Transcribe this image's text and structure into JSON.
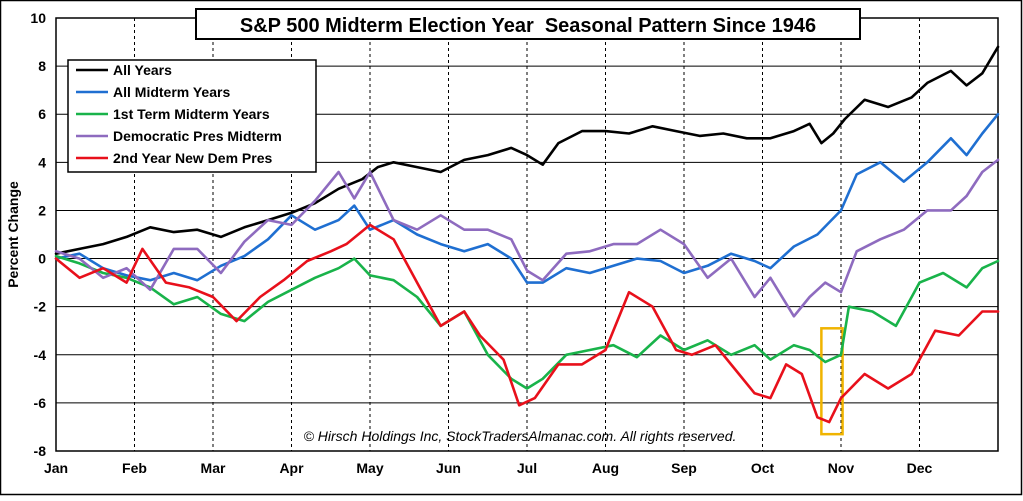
{
  "chart_data": {
    "type": "line",
    "title": "S&P 500 Midterm Election Year  Seasonal Pattern Since 1946",
    "xlabel": "",
    "ylabel": "Percent Change",
    "ylim": [
      -8,
      10
    ],
    "y_ticks": [
      -8,
      -6,
      -4,
      -2,
      0,
      2,
      4,
      6,
      8,
      10
    ],
    "x_range": [
      0,
      12
    ],
    "months": [
      "Jan",
      "Feb",
      "Mar",
      "Apr",
      "May",
      "Jun",
      "Jul",
      "Aug",
      "Sep",
      "Oct",
      "Nov",
      "Dec"
    ],
    "grid": "dashed vertical at month starts, solid horizontal at y ticks",
    "legend_position": "top-left",
    "copyright": "© Hirsch Holdings Inc, StockTradersAlmanac.com. All rights reserved.",
    "highlight_box": {
      "x": [
        9.75,
        10.02
      ],
      "y": [
        -7.3,
        -2.9
      ],
      "color": "#f0b400"
    },
    "series": [
      {
        "name": "All Years",
        "color": "#000000",
        "points": [
          [
            0,
            0.2
          ],
          [
            0.3,
            0.4
          ],
          [
            0.6,
            0.6
          ],
          [
            0.9,
            0.9
          ],
          [
            1.2,
            1.3
          ],
          [
            1.5,
            1.1
          ],
          [
            1.8,
            1.2
          ],
          [
            2.1,
            0.9
          ],
          [
            2.4,
            1.3
          ],
          [
            2.7,
            1.6
          ],
          [
            3.0,
            1.9
          ],
          [
            3.3,
            2.3
          ],
          [
            3.6,
            2.9
          ],
          [
            3.9,
            3.3
          ],
          [
            4.1,
            3.8
          ],
          [
            4.3,
            4.0
          ],
          [
            4.6,
            3.8
          ],
          [
            4.9,
            3.6
          ],
          [
            5.2,
            4.1
          ],
          [
            5.5,
            4.3
          ],
          [
            5.8,
            4.6
          ],
          [
            6.0,
            4.3
          ],
          [
            6.2,
            3.9
          ],
          [
            6.4,
            4.8
          ],
          [
            6.7,
            5.3
          ],
          [
            7.0,
            5.3
          ],
          [
            7.3,
            5.2
          ],
          [
            7.6,
            5.5
          ],
          [
            7.9,
            5.3
          ],
          [
            8.2,
            5.1
          ],
          [
            8.5,
            5.2
          ],
          [
            8.8,
            5.0
          ],
          [
            9.1,
            5.0
          ],
          [
            9.4,
            5.3
          ],
          [
            9.6,
            5.6
          ],
          [
            9.75,
            4.8
          ],
          [
            9.9,
            5.2
          ],
          [
            10.05,
            5.8
          ],
          [
            10.3,
            6.6
          ],
          [
            10.6,
            6.3
          ],
          [
            10.9,
            6.7
          ],
          [
            11.1,
            7.3
          ],
          [
            11.4,
            7.8
          ],
          [
            11.6,
            7.2
          ],
          [
            11.8,
            7.7
          ],
          [
            12.0,
            8.8
          ]
        ]
      },
      {
        "name": "All Midterm Years",
        "color": "#1f6fd1",
        "points": [
          [
            0,
            0.0
          ],
          [
            0.3,
            0.2
          ],
          [
            0.6,
            -0.4
          ],
          [
            0.9,
            -0.7
          ],
          [
            1.2,
            -0.9
          ],
          [
            1.5,
            -0.6
          ],
          [
            1.8,
            -0.9
          ],
          [
            2.1,
            -0.3
          ],
          [
            2.4,
            0.1
          ],
          [
            2.7,
            0.8
          ],
          [
            3.0,
            1.8
          ],
          [
            3.3,
            1.2
          ],
          [
            3.6,
            1.6
          ],
          [
            3.8,
            2.2
          ],
          [
            4.0,
            1.2
          ],
          [
            4.3,
            1.6
          ],
          [
            4.6,
            1.0
          ],
          [
            4.9,
            0.6
          ],
          [
            5.2,
            0.3
          ],
          [
            5.5,
            0.6
          ],
          [
            5.8,
            0.0
          ],
          [
            6.0,
            -1.0
          ],
          [
            6.2,
            -1.0
          ],
          [
            6.5,
            -0.4
          ],
          [
            6.8,
            -0.6
          ],
          [
            7.1,
            -0.3
          ],
          [
            7.4,
            0.0
          ],
          [
            7.7,
            -0.1
          ],
          [
            8.0,
            -0.6
          ],
          [
            8.3,
            -0.3
          ],
          [
            8.6,
            0.2
          ],
          [
            8.9,
            -0.1
          ],
          [
            9.1,
            -0.4
          ],
          [
            9.4,
            0.5
          ],
          [
            9.7,
            1.0
          ],
          [
            10.0,
            2.0
          ],
          [
            10.2,
            3.5
          ],
          [
            10.5,
            4.0
          ],
          [
            10.8,
            3.2
          ],
          [
            11.1,
            4.0
          ],
          [
            11.4,
            5.0
          ],
          [
            11.6,
            4.3
          ],
          [
            11.8,
            5.2
          ],
          [
            12.0,
            6.0
          ]
        ]
      },
      {
        "name": "1st Term Midterm Years",
        "color": "#19b34a",
        "points": [
          [
            0,
            0.1
          ],
          [
            0.3,
            -0.2
          ],
          [
            0.6,
            -0.6
          ],
          [
            0.9,
            -0.8
          ],
          [
            1.2,
            -1.2
          ],
          [
            1.5,
            -1.9
          ],
          [
            1.8,
            -1.6
          ],
          [
            2.1,
            -2.3
          ],
          [
            2.4,
            -2.6
          ],
          [
            2.7,
            -1.8
          ],
          [
            3.0,
            -1.3
          ],
          [
            3.3,
            -0.8
          ],
          [
            3.6,
            -0.4
          ],
          [
            3.8,
            0.0
          ],
          [
            4.0,
            -0.7
          ],
          [
            4.3,
            -0.9
          ],
          [
            4.6,
            -1.6
          ],
          [
            4.9,
            -2.8
          ],
          [
            5.2,
            -2.2
          ],
          [
            5.5,
            -4.0
          ],
          [
            5.8,
            -5.0
          ],
          [
            6.0,
            -5.4
          ],
          [
            6.2,
            -5.0
          ],
          [
            6.5,
            -4.0
          ],
          [
            6.8,
            -3.8
          ],
          [
            7.1,
            -3.6
          ],
          [
            7.4,
            -4.1
          ],
          [
            7.7,
            -3.2
          ],
          [
            8.0,
            -3.8
          ],
          [
            8.3,
            -3.4
          ],
          [
            8.6,
            -4.0
          ],
          [
            8.9,
            -3.6
          ],
          [
            9.1,
            -4.2
          ],
          [
            9.4,
            -3.6
          ],
          [
            9.6,
            -3.8
          ],
          [
            9.8,
            -4.3
          ],
          [
            10.0,
            -4.0
          ],
          [
            10.1,
            -2.0
          ],
          [
            10.4,
            -2.2
          ],
          [
            10.7,
            -2.8
          ],
          [
            11.0,
            -1.0
          ],
          [
            11.3,
            -0.6
          ],
          [
            11.6,
            -1.2
          ],
          [
            11.8,
            -0.4
          ],
          [
            12.0,
            -0.1
          ]
        ]
      },
      {
        "name": "Democratic Pres Midterm",
        "color": "#8e6bbf",
        "points": [
          [
            0,
            0.3
          ],
          [
            0.3,
            0.0
          ],
          [
            0.6,
            -0.8
          ],
          [
            0.9,
            -0.4
          ],
          [
            1.2,
            -1.3
          ],
          [
            1.5,
            0.4
          ],
          [
            1.8,
            0.4
          ],
          [
            2.1,
            -0.6
          ],
          [
            2.4,
            0.7
          ],
          [
            2.7,
            1.6
          ],
          [
            3.0,
            1.4
          ],
          [
            3.3,
            2.4
          ],
          [
            3.6,
            3.6
          ],
          [
            3.8,
            2.5
          ],
          [
            4.0,
            3.6
          ],
          [
            4.3,
            1.6
          ],
          [
            4.6,
            1.2
          ],
          [
            4.9,
            1.8
          ],
          [
            5.2,
            1.2
          ],
          [
            5.5,
            1.2
          ],
          [
            5.8,
            0.8
          ],
          [
            6.0,
            -0.5
          ],
          [
            6.2,
            -0.9
          ],
          [
            6.5,
            0.2
          ],
          [
            6.8,
            0.3
          ],
          [
            7.1,
            0.6
          ],
          [
            7.4,
            0.6
          ],
          [
            7.7,
            1.2
          ],
          [
            8.0,
            0.6
          ],
          [
            8.3,
            -0.8
          ],
          [
            8.6,
            0.0
          ],
          [
            8.9,
            -1.6
          ],
          [
            9.1,
            -0.8
          ],
          [
            9.4,
            -2.4
          ],
          [
            9.6,
            -1.6
          ],
          [
            9.8,
            -1.0
          ],
          [
            10.0,
            -1.4
          ],
          [
            10.2,
            0.3
          ],
          [
            10.5,
            0.8
          ],
          [
            10.8,
            1.2
          ],
          [
            11.1,
            2.0
          ],
          [
            11.4,
            2.0
          ],
          [
            11.6,
            2.6
          ],
          [
            11.8,
            3.6
          ],
          [
            12.0,
            4.1
          ]
        ]
      },
      {
        "name": "2nd Year New Dem Pres",
        "color": "#e8101b",
        "points": [
          [
            0,
            0.0
          ],
          [
            0.3,
            -0.8
          ],
          [
            0.6,
            -0.4
          ],
          [
            0.9,
            -1.0
          ],
          [
            1.1,
            0.4
          ],
          [
            1.4,
            -1.0
          ],
          [
            1.7,
            -1.2
          ],
          [
            2.0,
            -1.6
          ],
          [
            2.3,
            -2.6
          ],
          [
            2.6,
            -1.6
          ],
          [
            2.9,
            -0.9
          ],
          [
            3.2,
            -0.1
          ],
          [
            3.5,
            0.3
          ],
          [
            3.7,
            0.6
          ],
          [
            4.0,
            1.4
          ],
          [
            4.3,
            0.8
          ],
          [
            4.6,
            -1.0
          ],
          [
            4.9,
            -2.8
          ],
          [
            5.2,
            -2.2
          ],
          [
            5.4,
            -3.2
          ],
          [
            5.7,
            -4.2
          ],
          [
            5.9,
            -6.1
          ],
          [
            6.1,
            -5.8
          ],
          [
            6.4,
            -4.4
          ],
          [
            6.7,
            -4.4
          ],
          [
            7.0,
            -3.8
          ],
          [
            7.3,
            -1.4
          ],
          [
            7.6,
            -2.0
          ],
          [
            7.9,
            -3.8
          ],
          [
            8.1,
            -4.0
          ],
          [
            8.4,
            -3.6
          ],
          [
            8.7,
            -4.8
          ],
          [
            8.9,
            -5.6
          ],
          [
            9.1,
            -5.8
          ],
          [
            9.3,
            -4.4
          ],
          [
            9.5,
            -4.8
          ],
          [
            9.7,
            -6.6
          ],
          [
            9.85,
            -6.8
          ],
          [
            10.0,
            -5.8
          ],
          [
            10.3,
            -4.8
          ],
          [
            10.6,
            -5.4
          ],
          [
            10.9,
            -4.8
          ],
          [
            11.2,
            -3.0
          ],
          [
            11.5,
            -3.2
          ],
          [
            11.8,
            -2.2
          ],
          [
            12.0,
            -2.2
          ]
        ]
      }
    ]
  }
}
